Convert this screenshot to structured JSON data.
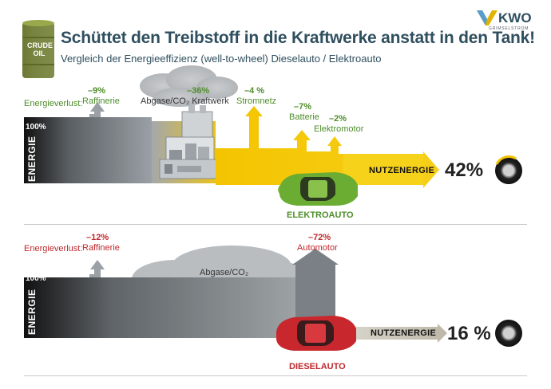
{
  "header": {
    "title": "Schüttet den Treibstoff in die Kraftwerke anstatt in den Tank!",
    "subtitle": "Vergleich der Energieeffizienz (well-to-wheel) Dieselauto / Elektroauto",
    "barrel_text": "CRUDE OIL",
    "logo_text": "KWO",
    "logo_sub": "GRIMSELSTROM"
  },
  "elektro": {
    "loss_label": "Energieverlust:",
    "start_pct": "100%",
    "axis_label": "ENERGIE",
    "stages": [
      {
        "pct": "–9%",
        "label": "Raffinerie"
      },
      {
        "pct": "–36%",
        "label": "Abgase/CO₂ Kraftwerk"
      },
      {
        "pct": "–4 %",
        "label": "Stromnetz"
      },
      {
        "pct": "–7%",
        "label": "Batterie"
      },
      {
        "pct": "–2%",
        "label": "Elektromotor"
      }
    ],
    "useful_label": "NUTZENERGIE",
    "result": "42%",
    "car_label": "ELEKTROAUTO",
    "car_color": "#6aad32"
  },
  "diesel": {
    "loss_label": "Energieverlust:",
    "start_pct": "100%",
    "axis_label": "ENERGIE",
    "stages": [
      {
        "pct": "–12%",
        "label": "Raffinerie"
      },
      {
        "pct": "–72%",
        "label": "Automotor"
      }
    ],
    "exhaust_label": "Abgase/CO₂",
    "useful_label": "NUTZENERGIE",
    "result": "16 %",
    "car_label": "DIESELAUTO",
    "car_color": "#c8282d"
  },
  "colors": {
    "elektro_accent": "#4e8d2a",
    "diesel_accent": "#c0282d",
    "energy_yellow": "#f2c200",
    "flow_grey": "#8a9096"
  }
}
